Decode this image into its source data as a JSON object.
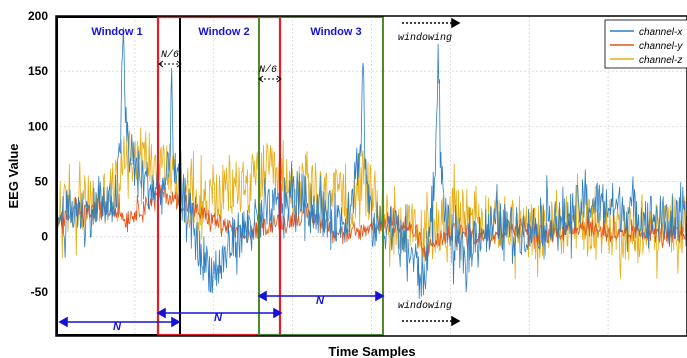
{
  "chart_data": {
    "type": "line",
    "xlabel": "Time Samples",
    "ylabel": "EEG Value",
    "ylim": [
      -90,
      200
    ],
    "yticks": [
      -50,
      0,
      50,
      100,
      150,
      200
    ],
    "grid": true,
    "legend_position": "top-right",
    "series": [
      {
        "name": "channel-x",
        "color": "#2f7fc1",
        "x": [
          0,
          10,
          20,
          30,
          40,
          50,
          58,
          62,
          64,
          66,
          70,
          80,
          90,
          100,
          108,
          110,
          112,
          118,
          125,
          135,
          150,
          160,
          170,
          185,
          200,
          215,
          230,
          245,
          260,
          275,
          285,
          290,
          292,
          294,
          300,
          320,
          340,
          350,
          358,
          362,
          364,
          366,
          372,
          380,
          390,
          400,
          420,
          440,
          460,
          470,
          480,
          500,
          520,
          540,
          560,
          580,
          600
        ],
        "y": [
          15,
          20,
          25,
          18,
          30,
          25,
          40,
          100,
          190,
          110,
          75,
          55,
          45,
          40,
          60,
          160,
          60,
          40,
          30,
          -10,
          -35,
          -20,
          0,
          10,
          20,
          30,
          40,
          25,
          20,
          15,
          60,
          80,
          170,
          60,
          10,
          10,
          -20,
          -40,
          30,
          100,
          160,
          60,
          10,
          -10,
          -20,
          5,
          10,
          5,
          10,
          20,
          10,
          30,
          30,
          25,
          20,
          15,
          10
        ]
      },
      {
        "name": "channel-y",
        "color": "#e0561d",
        "x": [
          0,
          20,
          40,
          60,
          65,
          80,
          100,
          120,
          140,
          160,
          180,
          200,
          220,
          240,
          260,
          280,
          300,
          320,
          340,
          350,
          360,
          380,
          400,
          420,
          440,
          460,
          480,
          500,
          520,
          540,
          560,
          580,
          600
        ],
        "y": [
          15,
          20,
          25,
          25,
          15,
          25,
          40,
          30,
          20,
          10,
          0,
          10,
          15,
          20,
          10,
          0,
          10,
          15,
          5,
          -15,
          -5,
          5,
          0,
          5,
          10,
          0,
          5,
          10,
          5,
          0,
          5,
          0,
          5
        ]
      },
      {
        "name": "channel-z",
        "color": "#e6ad14",
        "x": [
          0,
          20,
          40,
          60,
          65,
          80,
          100,
          120,
          140,
          160,
          180,
          200,
          220,
          240,
          260,
          280,
          290,
          300,
          320,
          340,
          350,
          360,
          380,
          400,
          420,
          440,
          460,
          480,
          500,
          520,
          540,
          560,
          580,
          600
        ],
        "y": [
          20,
          30,
          30,
          50,
          80,
          75,
          70,
          40,
          30,
          40,
          45,
          60,
          45,
          40,
          35,
          30,
          55,
          40,
          10,
          5,
          0,
          10,
          20,
          20,
          15,
          5,
          5,
          10,
          15,
          10,
          5,
          0,
          10,
          15
        ]
      }
    ],
    "annotations": {
      "windows": [
        {
          "label": "Window 1",
          "color": "#000000"
        },
        {
          "label": "Window 2",
          "color": "#e31e24"
        },
        {
          "label": "Window 3",
          "color": "#4e8a2a"
        }
      ],
      "overlap_label": "N/6",
      "span_label": "N",
      "windowing_label": "windowing"
    }
  }
}
